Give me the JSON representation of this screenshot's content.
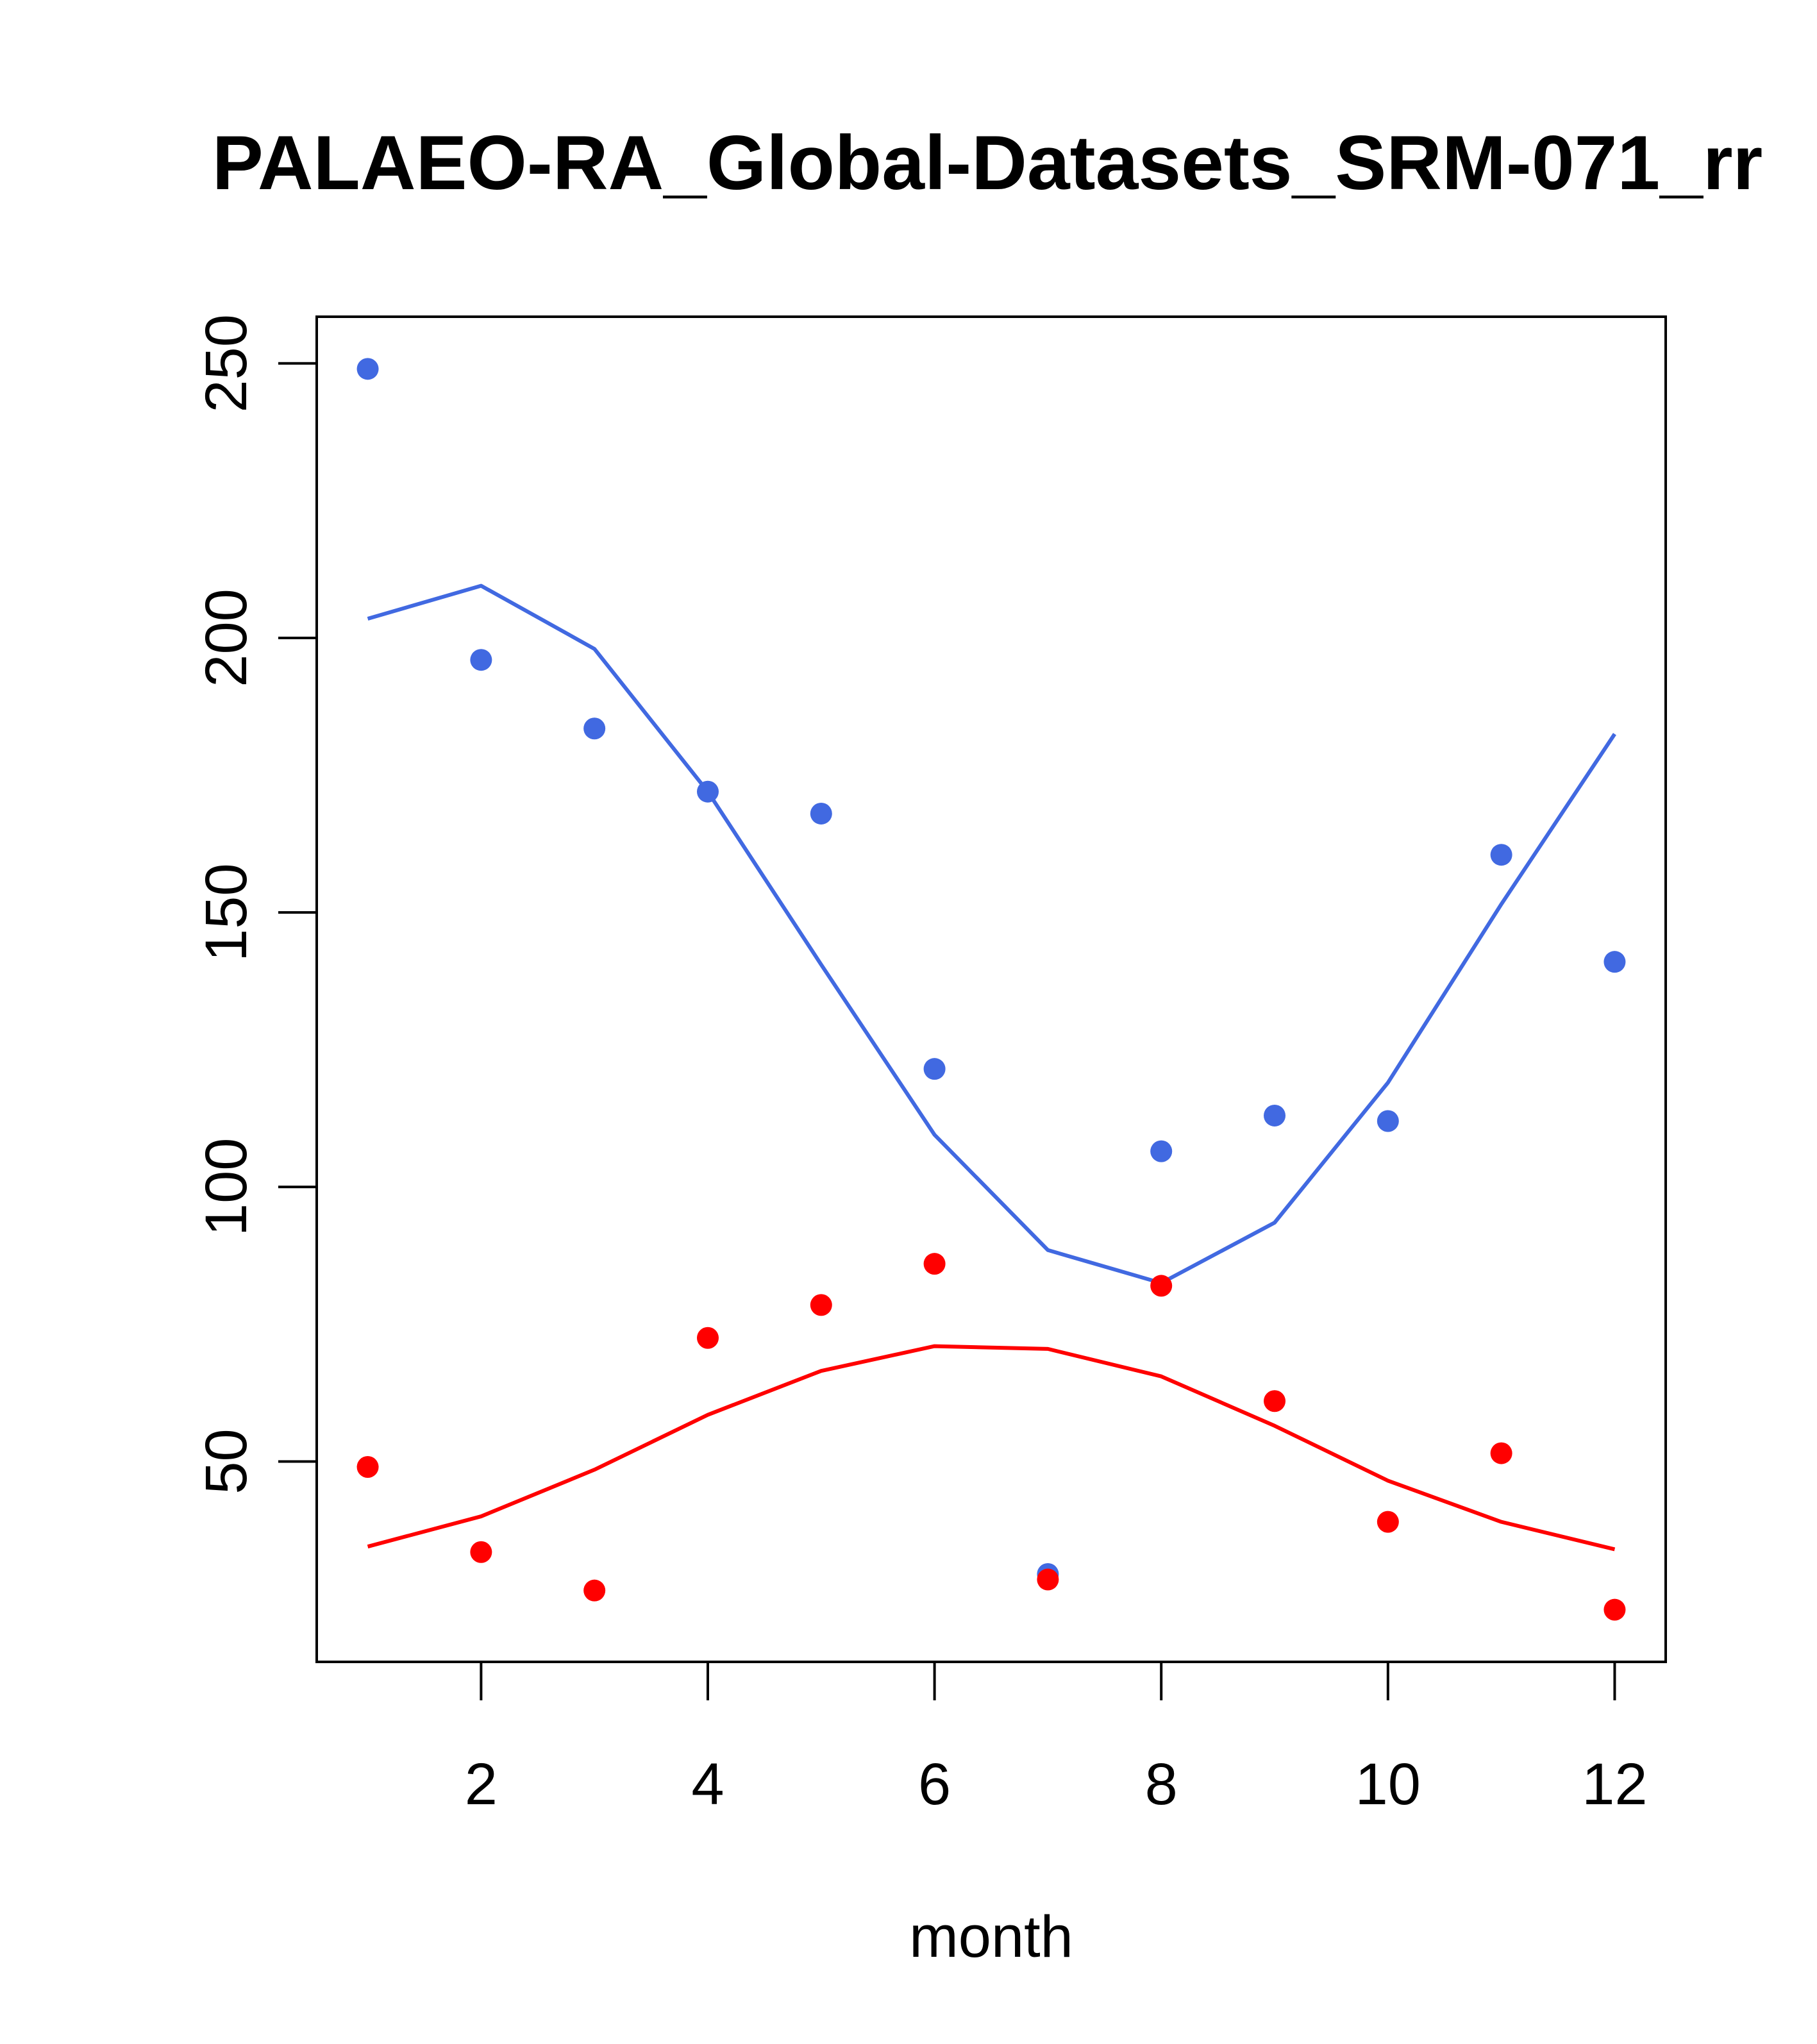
{
  "chart_data": {
    "type": "line",
    "title": "PALAEO-RA_Global-Datasets_SRM-071_rr",
    "xlabel": "month",
    "ylabel": "",
    "xlim": [
      0.55,
      12.45
    ],
    "ylim": [
      13.5,
      258.5
    ],
    "xticks": [
      2,
      4,
      6,
      8,
      10,
      12
    ],
    "yticks": [
      50,
      100,
      150,
      200,
      250
    ],
    "x": [
      1,
      2,
      3,
      4,
      5,
      6,
      7,
      8,
      9,
      10,
      11,
      12
    ],
    "series": [
      {
        "name": "blue-points",
        "kind": "points",
        "color": "#4169E1",
        "values": [
          249,
          196,
          183.5,
          172,
          168,
          121.5,
          29.5,
          106.5,
          113,
          112,
          160.5,
          141
        ]
      },
      {
        "name": "blue-line",
        "kind": "line",
        "color": "#4169E1",
        "values": [
          203.5,
          209.5,
          198,
          172,
          140.5,
          109.5,
          88.5,
          82.5,
          93.5,
          119,
          151.5,
          182.5
        ]
      },
      {
        "name": "red-points",
        "kind": "points",
        "color": "#FF0000",
        "values": [
          49,
          33.5,
          26.5,
          72.5,
          78.5,
          86,
          28.5,
          82,
          61,
          39,
          51.5,
          23
        ]
      },
      {
        "name": "red-line",
        "kind": "line",
        "color": "#FF0000",
        "values": [
          34.5,
          40,
          48.5,
          58.5,
          66.5,
          71,
          70.5,
          65.5,
          56.5,
          46.5,
          39,
          34
        ]
      }
    ]
  }
}
